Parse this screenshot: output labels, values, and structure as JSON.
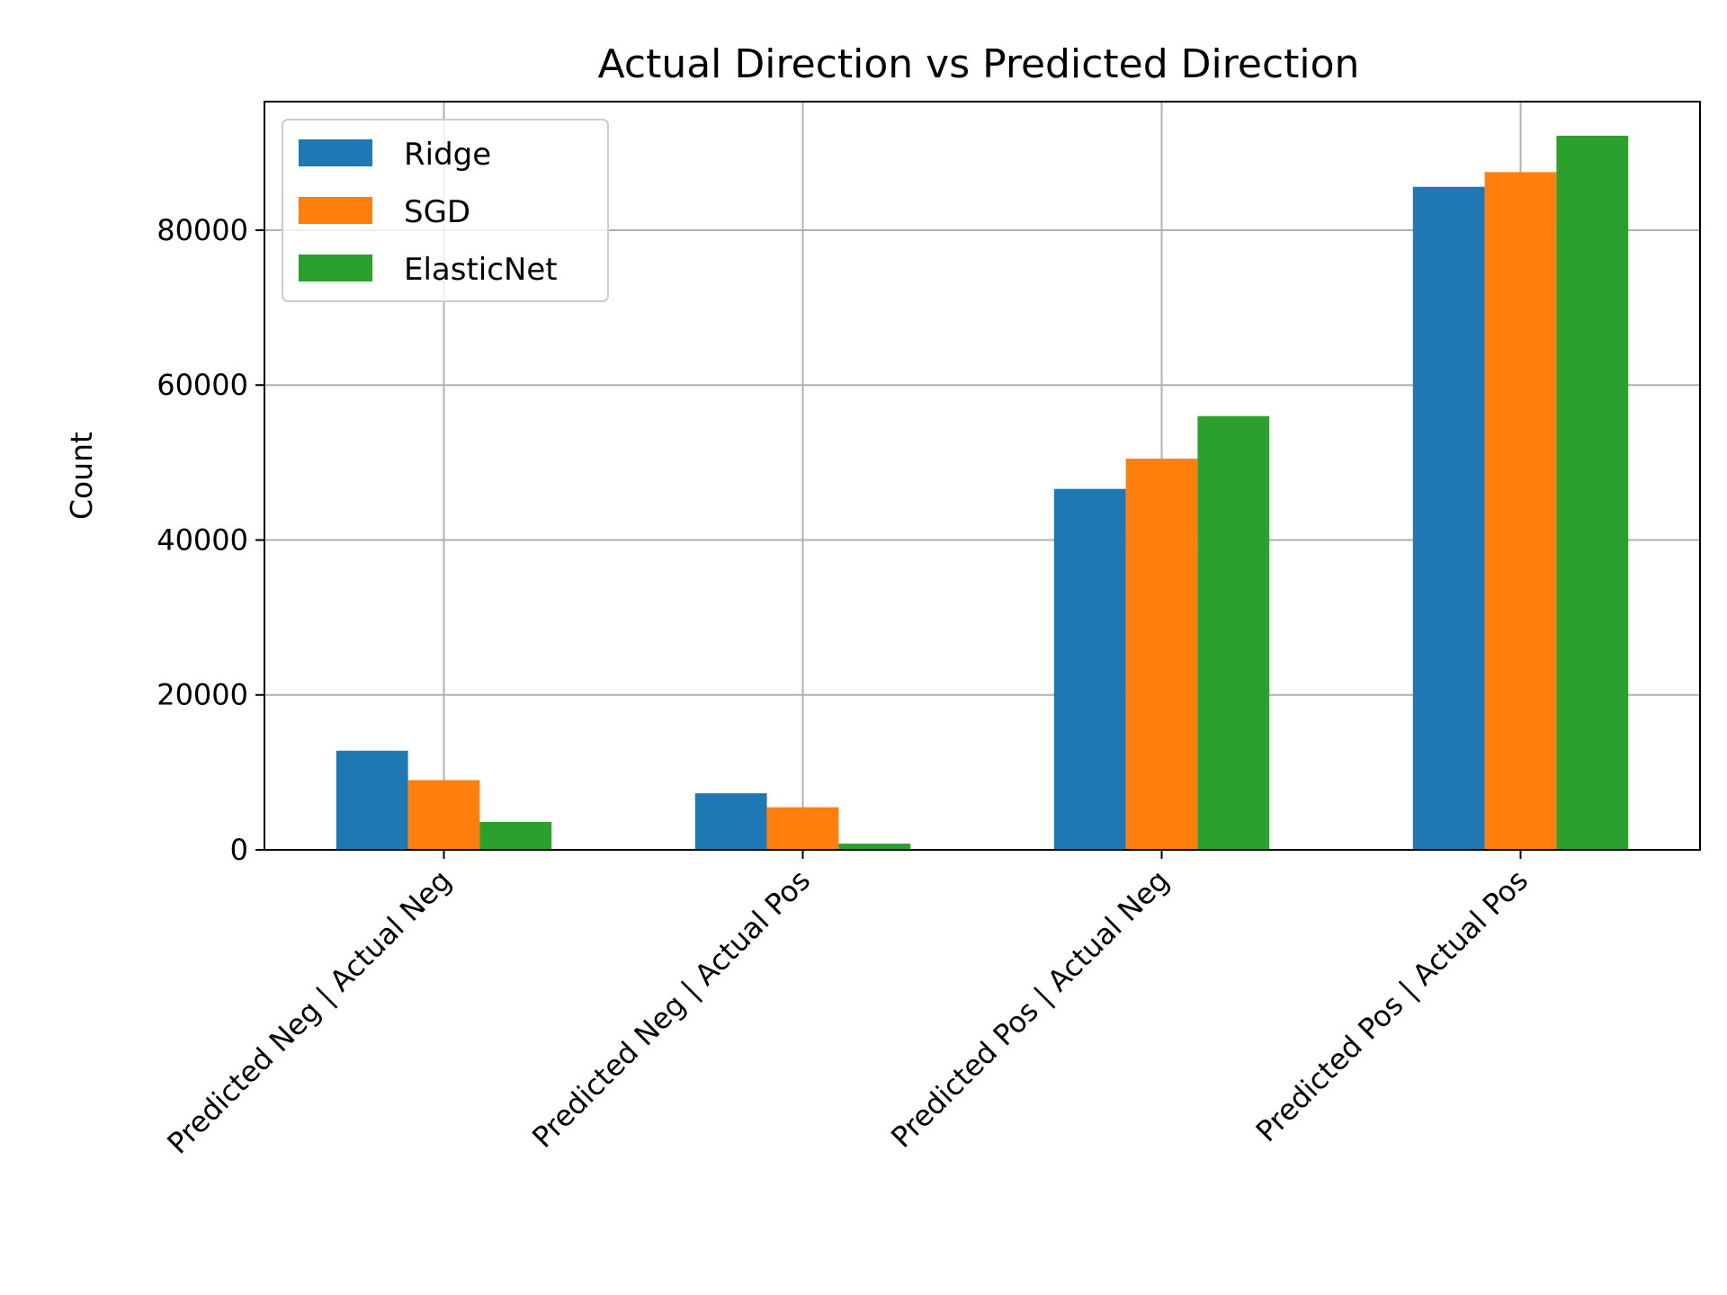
{
  "chart_data": {
    "type": "bar",
    "title": "Actual Direction vs Predicted Direction",
    "xlabel": "",
    "ylabel": "Count",
    "categories": [
      "Predicted Neg | Actual Neg",
      "Predicted Neg | Actual Pos",
      "Predicted Pos | Actual Neg",
      "Predicted Pos | Actual Pos"
    ],
    "series": [
      {
        "name": "Ridge",
        "color": "#1f77b4",
        "values": [
          12800,
          7300,
          46600,
          85600
        ]
      },
      {
        "name": "SGD",
        "color": "#ff7f0e",
        "values": [
          9000,
          5500,
          50500,
          87500
        ]
      },
      {
        "name": "ElasticNet",
        "color": "#2ca02c",
        "values": [
          3600,
          800,
          56000,
          92200
        ]
      }
    ],
    "ylim": [
      0,
      96600
    ],
    "yticks": [
      0,
      20000,
      40000,
      60000,
      80000
    ],
    "ytick_labels": [
      "0",
      "20000",
      "40000",
      "60000",
      "80000"
    ],
    "grid": true,
    "legend_position": "top-left"
  }
}
